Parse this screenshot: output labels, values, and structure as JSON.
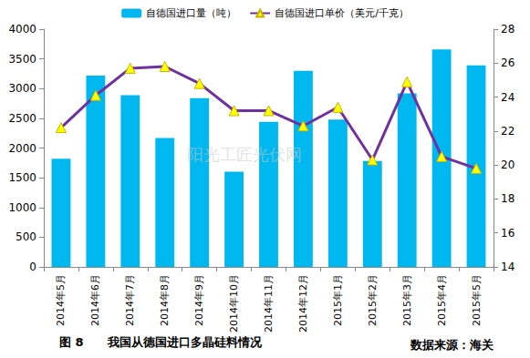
{
  "chart_data": {
    "type": "bar",
    "title": "图 8　　我国从德国进口多晶硅料情况",
    "annotations": [
      "数据来源：海关",
      "阳光工匠光伏网"
    ],
    "categories": [
      "2014年5月",
      "2014年6月",
      "2014年7月",
      "2014年8月",
      "2014年9月",
      "2014年10月",
      "2014年11月",
      "2014年12月",
      "2015年1月",
      "2015年2月",
      "2015年3月",
      "2015年4月",
      "2015年5月"
    ],
    "series": [
      {
        "name": "自德国进口量（吨）",
        "type": "bar",
        "color": "#00b8f0",
        "values": [
          1820,
          3220,
          2890,
          2170,
          2840,
          1600,
          2440,
          3300,
          2480,
          1780,
          2920,
          3660,
          3390
        ]
      },
      {
        "name": "自德国进口单价（美元/千克）",
        "type": "line",
        "color": "#7030a0",
        "marker": "triangle",
        "axis": "y2",
        "values": [
          22.2,
          24.1,
          25.7,
          25.8,
          24.8,
          23.2,
          23.2,
          22.3,
          23.4,
          20.3,
          24.9,
          20.5,
          19.8
        ]
      }
    ],
    "ylim": [
      0,
      4000
    ],
    "yticks": [
      0,
      500,
      1000,
      1500,
      2000,
      2500,
      3000,
      3500,
      4000
    ],
    "y2lim": [
      14,
      28
    ],
    "y2ticks": [
      14,
      16,
      18,
      20,
      22,
      24,
      26,
      28
    ],
    "grid": false,
    "legend": "top"
  }
}
